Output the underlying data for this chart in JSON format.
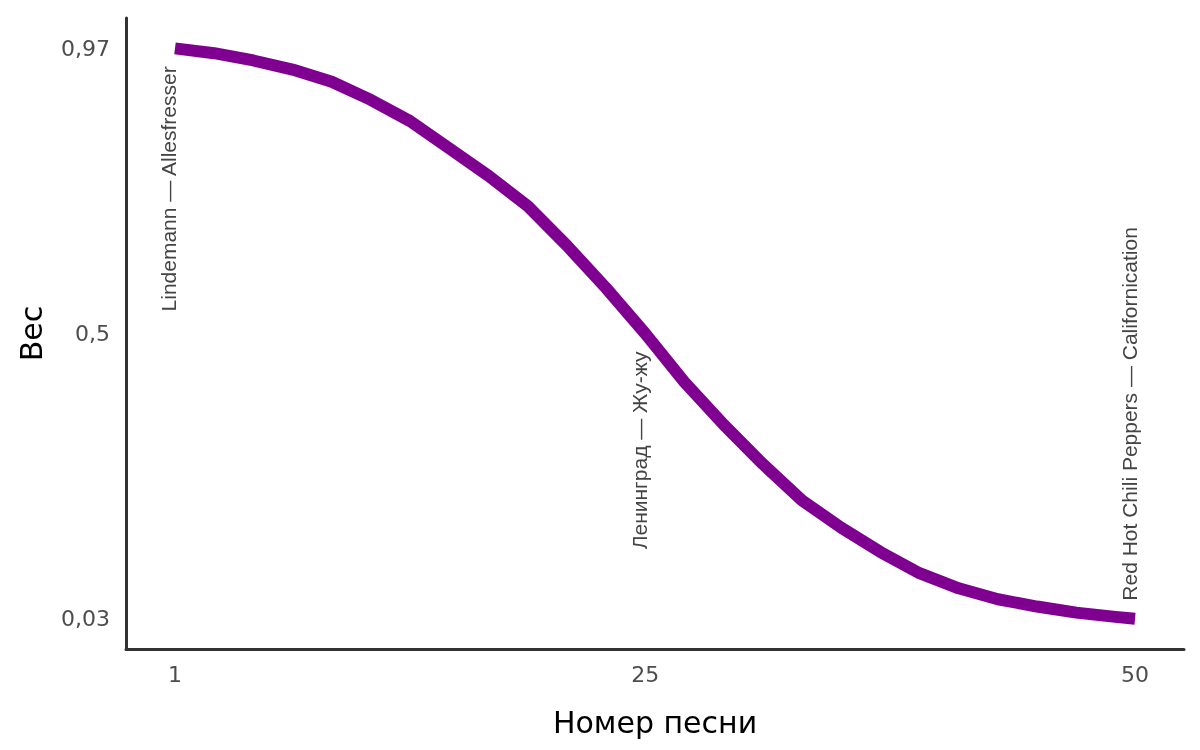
{
  "chart_data": {
    "type": "line",
    "xlabel": "Номер песни",
    "ylabel": "Вес",
    "x": [
      1,
      3,
      5,
      7,
      9,
      11,
      13,
      15,
      17,
      19,
      21,
      23,
      25,
      27,
      29,
      31,
      33,
      35,
      37,
      39,
      41,
      43,
      45,
      47,
      49,
      50
    ],
    "series": [
      {
        "color": "#7f0090",
        "values": [
          0.97,
          0.962,
          0.95,
          0.935,
          0.915,
          0.885,
          0.85,
          0.805,
          0.76,
          0.71,
          0.645,
          0.575,
          0.5,
          0.42,
          0.35,
          0.285,
          0.225,
          0.18,
          0.14,
          0.105,
          0.08,
          0.062,
          0.05,
          0.04,
          0.033,
          0.03
        ]
      }
    ],
    "xlim": [
      -1.5,
      52.5
    ],
    "xticks": [
      1,
      25,
      50
    ],
    "ylim": [
      -0.02,
      1.02
    ],
    "yticks": [
      {
        "value": 0.03,
        "label": "0,03"
      },
      {
        "value": 0.5,
        "label": "0,5"
      },
      {
        "value": 0.97,
        "label": "0,97"
      }
    ],
    "grid": false,
    "annotations": [
      {
        "text": "Lindemann — Allesfresser",
        "x": 1,
        "y": 0.97
      },
      {
        "text": "Ленинград — Жу-жу",
        "x": 25,
        "y": 0.5
      },
      {
        "text": "Red Hot Chili Peppers — Californication",
        "x": 50,
        "y": 0.03
      }
    ]
  }
}
